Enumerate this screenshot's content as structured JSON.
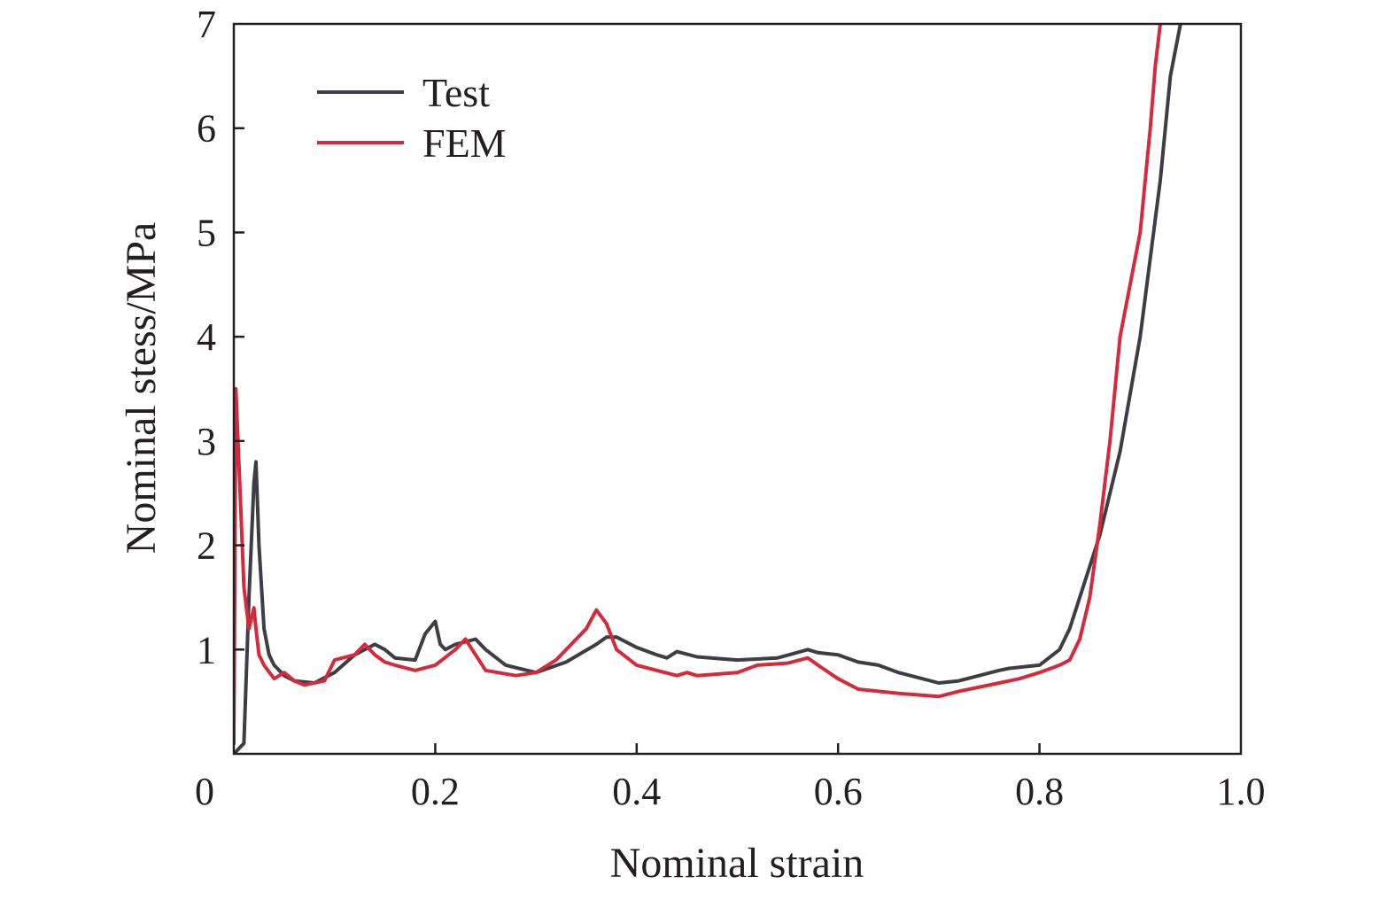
{
  "chart_data": {
    "type": "line",
    "xlabel": "Nominal strain",
    "ylabel": "Nominal stess/MPa",
    "xlim": [
      0,
      1.0
    ],
    "ylim": [
      0,
      7
    ],
    "xticks": [
      "0",
      "0.2",
      "0.4",
      "0.6",
      "0.8",
      "1.0"
    ],
    "xtick_values": [
      0,
      0.2,
      0.4,
      0.6,
      0.8,
      1.0
    ],
    "yticks": [
      "1",
      "2",
      "3",
      "4",
      "5",
      "6",
      "7"
    ],
    "ytick_values": [
      1,
      2,
      3,
      4,
      5,
      6,
      7
    ],
    "grid": false,
    "legend_position": "top-left",
    "series": [
      {
        "name": "Test",
        "color": "#3d3e44",
        "x": [
          0.0,
          0.01,
          0.015,
          0.02,
          0.022,
          0.025,
          0.03,
          0.035,
          0.04,
          0.05,
          0.06,
          0.08,
          0.1,
          0.12,
          0.14,
          0.15,
          0.16,
          0.18,
          0.19,
          0.2,
          0.205,
          0.21,
          0.22,
          0.24,
          0.25,
          0.27,
          0.3,
          0.33,
          0.36,
          0.37,
          0.38,
          0.4,
          0.42,
          0.43,
          0.44,
          0.46,
          0.5,
          0.54,
          0.57,
          0.58,
          0.6,
          0.62,
          0.64,
          0.66,
          0.7,
          0.72,
          0.76,
          0.77,
          0.8,
          0.82,
          0.83,
          0.84,
          0.86,
          0.88,
          0.9,
          0.92,
          0.93,
          0.94
        ],
        "y": [
          0.0,
          0.1,
          1.5,
          2.6,
          2.8,
          2.0,
          1.2,
          0.95,
          0.85,
          0.75,
          0.7,
          0.68,
          0.78,
          0.95,
          1.05,
          1.0,
          0.92,
          0.9,
          1.15,
          1.27,
          1.05,
          1.0,
          1.05,
          1.1,
          1.0,
          0.85,
          0.78,
          0.88,
          1.05,
          1.12,
          1.12,
          1.02,
          0.95,
          0.92,
          0.98,
          0.93,
          0.9,
          0.92,
          1.0,
          0.97,
          0.95,
          0.88,
          0.85,
          0.78,
          0.68,
          0.7,
          0.8,
          0.82,
          0.85,
          1.0,
          1.2,
          1.5,
          2.1,
          2.9,
          4.0,
          5.5,
          6.5,
          7.0
        ]
      },
      {
        "name": "FEM",
        "color": "#d42a3c",
        "x": [
          0.0,
          0.002,
          0.005,
          0.01,
          0.015,
          0.02,
          0.022,
          0.025,
          0.03,
          0.04,
          0.05,
          0.06,
          0.07,
          0.09,
          0.1,
          0.12,
          0.13,
          0.14,
          0.15,
          0.16,
          0.18,
          0.2,
          0.22,
          0.23,
          0.24,
          0.25,
          0.28,
          0.3,
          0.32,
          0.35,
          0.36,
          0.37,
          0.38,
          0.4,
          0.42,
          0.44,
          0.45,
          0.46,
          0.5,
          0.52,
          0.55,
          0.57,
          0.58,
          0.6,
          0.62,
          0.64,
          0.66,
          0.7,
          0.72,
          0.76,
          0.78,
          0.8,
          0.82,
          0.83,
          0.84,
          0.85,
          0.86,
          0.87,
          0.88,
          0.9,
          0.91,
          0.915,
          0.92
        ],
        "y": [
          0.1,
          3.5,
          2.8,
          1.6,
          1.2,
          1.4,
          1.2,
          0.95,
          0.85,
          0.72,
          0.78,
          0.7,
          0.66,
          0.7,
          0.9,
          0.95,
          1.05,
          0.95,
          0.88,
          0.85,
          0.8,
          0.85,
          1.0,
          1.1,
          0.95,
          0.8,
          0.75,
          0.78,
          0.9,
          1.2,
          1.38,
          1.25,
          1.0,
          0.85,
          0.8,
          0.75,
          0.78,
          0.75,
          0.78,
          0.85,
          0.87,
          0.92,
          0.85,
          0.72,
          0.62,
          0.6,
          0.58,
          0.55,
          0.6,
          0.68,
          0.72,
          0.78,
          0.85,
          0.9,
          1.1,
          1.5,
          2.2,
          3.0,
          4.0,
          5.0,
          6.0,
          6.6,
          7.0
        ]
      }
    ]
  }
}
